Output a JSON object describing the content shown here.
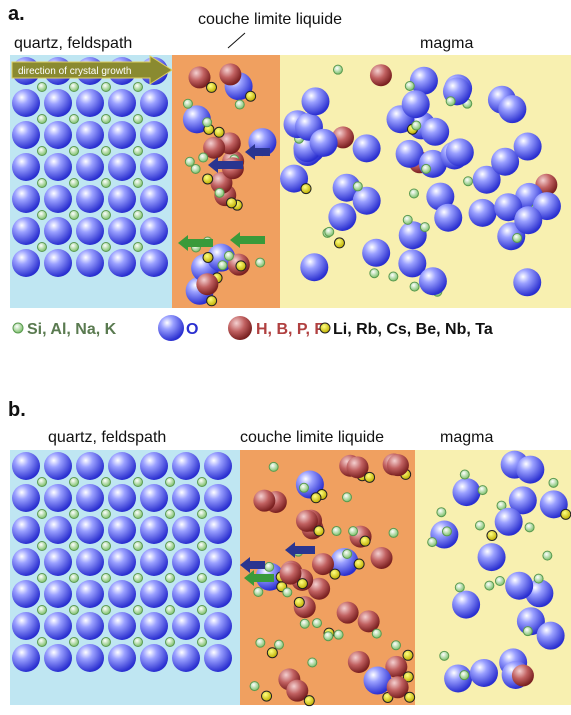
{
  "panels": [
    {
      "label": "a.",
      "zones": {
        "crystal": "quartz, feldspath",
        "boundary": "couche limite liquide",
        "magma": "magma"
      },
      "arrow_label": "direction of crystal growth"
    },
    {
      "label": "b.",
      "zones": {
        "crystal": "quartz, feldspath",
        "boundary": "couche limite liquide",
        "magma": "magma"
      }
    }
  ],
  "legend": [
    "Si, Al, Na, K",
    "O",
    "H, B, P, F",
    "Li, Rb, Cs, Be, Nb, Ta"
  ]
}
